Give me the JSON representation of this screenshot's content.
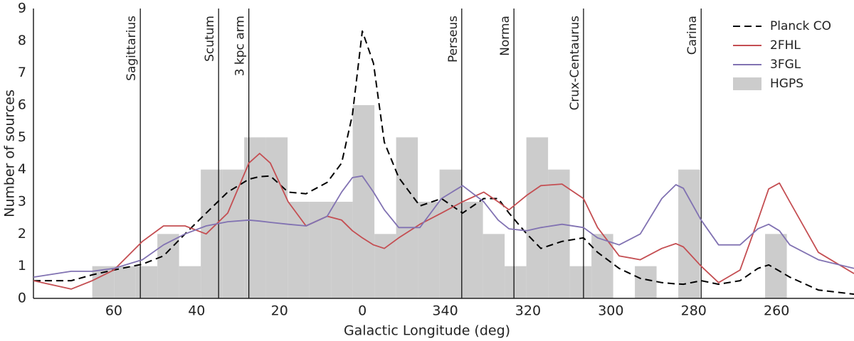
{
  "chart_data": {
    "type": "line",
    "xlabel": "Galactic Longitude (deg)",
    "ylabel": "Number of sources",
    "xlim": [
      79.4,
      -118.7
    ],
    "ylim": [
      0,
      9
    ],
    "xticks": [
      60,
      40,
      20,
      0,
      {
        "value": -20,
        "label": "340"
      },
      {
        "value": -40,
        "label": "320"
      },
      {
        "value": -60,
        "label": "300"
      },
      {
        "value": -80,
        "label": "280"
      },
      {
        "value": -100,
        "label": "260"
      }
    ],
    "yticks": [
      0,
      1,
      2,
      3,
      4,
      5,
      6,
      7,
      8,
      9
    ],
    "grid": false,
    "legend": "upper right",
    "x": [
      79.4,
      70.3,
      65.2,
      60,
      53.1,
      48.0,
      42.8,
      37.7,
      32.5,
      27.4,
      24.8,
      22.2,
      17.9,
      13.6,
      8.5,
      5.0,
      2.4,
      0,
      -2.7,
      -5.3,
      -8.8,
      -13.9,
      -19.1,
      -24.2,
      -29.3,
      -32.8,
      -35.4,
      -39.7,
      -43.1,
      -48.2,
      -53.4,
      -56.8,
      -62.0,
      -67.1,
      -72.3,
      -75.7,
      -77.5,
      -81.8,
      -86.0,
      -91.2,
      -95.5,
      -98.1,
      -100.7,
      -103.2,
      -110.1,
      -118.7
    ],
    "series": [
      {
        "name": "Planck CO",
        "color": "#000000",
        "dash": true,
        "values": [
          0.55,
          0.55,
          0.73,
          0.88,
          1.06,
          1.32,
          2.0,
          2.65,
          3.3,
          3.7,
          3.78,
          3.8,
          3.3,
          3.25,
          3.6,
          4.2,
          5.7,
          8.3,
          7.3,
          4.85,
          3.75,
          2.87,
          3.1,
          2.65,
          3.1,
          3.1,
          2.65,
          2.0,
          1.55,
          1.77,
          1.88,
          1.43,
          0.93,
          0.62,
          0.49,
          0.45,
          0.44,
          0.55,
          0.44,
          0.55,
          0.93,
          1.04,
          0.85,
          0.66,
          0.26,
          0.13
        ]
      },
      {
        "name": "2FHL",
        "color": "#c44e52",
        "dash": false,
        "values": [
          0.55,
          0.29,
          0.55,
          0.88,
          1.77,
          2.25,
          2.25,
          2.0,
          2.65,
          4.2,
          4.5,
          4.2,
          3.0,
          2.25,
          2.55,
          2.43,
          2.1,
          1.88,
          1.66,
          1.55,
          1.88,
          2.3,
          2.65,
          3.0,
          3.3,
          3.0,
          2.75,
          3.2,
          3.5,
          3.55,
          3.1,
          2.2,
          1.32,
          1.2,
          1.55,
          1.7,
          1.6,
          1.0,
          0.49,
          0.88,
          2.43,
          3.4,
          3.58,
          3.0,
          1.43,
          0.77
        ]
      },
      {
        "name": "3FGL",
        "color": "#8172b2",
        "dash": false,
        "values": [
          0.66,
          0.84,
          0.84,
          0.93,
          1.2,
          1.66,
          2.0,
          2.25,
          2.38,
          2.43,
          2.4,
          2.36,
          2.3,
          2.25,
          2.55,
          3.3,
          3.75,
          3.8,
          3.3,
          2.75,
          2.2,
          2.2,
          3.1,
          3.5,
          3.0,
          2.43,
          2.16,
          2.1,
          2.2,
          2.3,
          2.2,
          1.88,
          1.66,
          2.0,
          3.1,
          3.53,
          3.42,
          2.43,
          1.66,
          1.66,
          2.16,
          2.3,
          2.1,
          1.66,
          1.2,
          0.93
        ]
      }
    ],
    "histogram": {
      "name": "HGPS",
      "color": "#cccccc",
      "bins": [
        65.2,
        59.96,
        54.72,
        49.48,
        44.24,
        39.0,
        33.76,
        28.52,
        23.28,
        18.04,
        12.8,
        7.56,
        2.32,
        -2.92,
        -8.16,
        -13.4,
        -18.64,
        -23.88,
        -29.12,
        -34.36,
        -39.6,
        -44.84,
        -50.08,
        -55.32,
        -60.56,
        -65.8,
        -71.04,
        -76.28,
        -81.52,
        -86.76,
        -92.0,
        -97.24,
        -102.48
      ],
      "counts": [
        1,
        1,
        1,
        2,
        1,
        4,
        4,
        5,
        5,
        3,
        3,
        3,
        6,
        2,
        5,
        3,
        4,
        3,
        2,
        1,
        5,
        4,
        1,
        2,
        0,
        1,
        0,
        4,
        0,
        0,
        0,
        2
      ]
    },
    "arms": [
      {
        "name": "Sagittarius",
        "longitude": 53.6
      },
      {
        "name": "Scutum",
        "longitude": 34.7
      },
      {
        "name": "3 kpc arm",
        "longitude": 27.4
      },
      {
        "name": "Perseus",
        "longitude": -24.0
      },
      {
        "name": "Norma",
        "longitude": -36.6
      },
      {
        "name": "Crux-Centaurus",
        "longitude": -53.4
      },
      {
        "name": "Carina",
        "longitude": -81.8
      }
    ]
  }
}
